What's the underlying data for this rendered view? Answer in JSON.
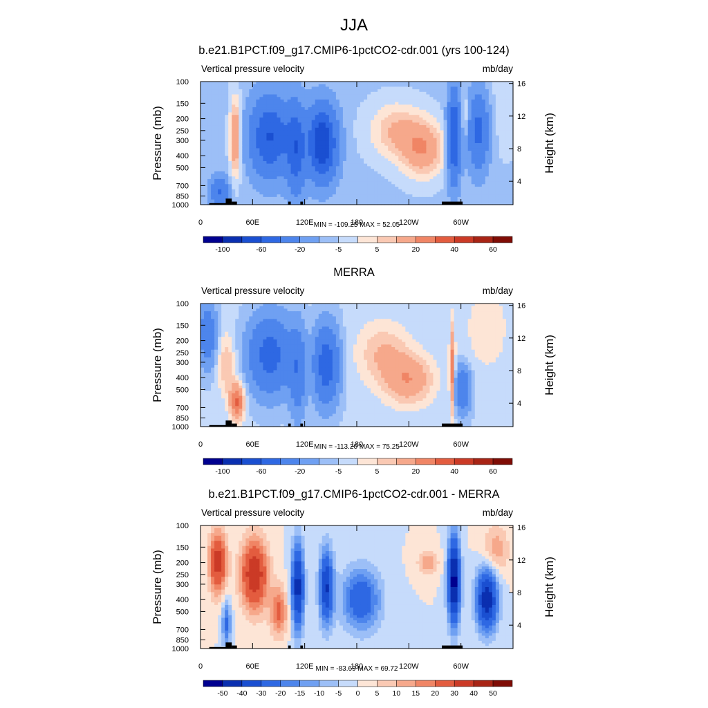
{
  "figure": {
    "title": "JJA"
  },
  "y_axis": {
    "left_label": "Pressure (mb)",
    "right_label": "Height (km)",
    "pressure_ticks": [
      "100",
      "150",
      "200",
      "250",
      "300",
      "400",
      "500",
      "700",
      "850",
      "1000"
    ],
    "height_ticks": [
      "16",
      "12",
      "8",
      "4"
    ]
  },
  "x_axis": {
    "ticks": [
      "0",
      "60E",
      "120E",
      "180",
      "120W",
      "60W"
    ]
  },
  "panels": [
    {
      "title": "b.e21.B1PCT.f09_g17.CMIP6-1pctCO2-cdr.001 (yrs 100-124)",
      "left_string": "Vertical pressure velocity",
      "right_string": "mb/day",
      "stats": "MIN = -109.25  MAX =  52.05",
      "colorbar_labels": [
        "-100",
        "-60",
        "-20",
        "-5",
        "5",
        "20",
        "40",
        "60"
      ]
    },
    {
      "title": "MERRA",
      "left_string": "Vertical pressure velocity",
      "right_string": "mb/day",
      "stats": "MIN = -113.20  MAX =  75.25",
      "colorbar_labels": [
        "-100",
        "-60",
        "-20",
        "-5",
        "5",
        "20",
        "40",
        "60"
      ]
    },
    {
      "title": "b.e21.B1PCT.f09_g17.CMIP6-1pctCO2-cdr.001 - MERRA",
      "left_string": "Vertical pressure velocity",
      "right_string": "mb/day",
      "stats": "MIN = -83.69  MAX =  69.72",
      "colorbar_labels": [
        "-50",
        "-40",
        "-30",
        "-20",
        "-15",
        "-10",
        "-5",
        "0",
        "5",
        "10",
        "15",
        "20",
        "30",
        "40",
        "50"
      ]
    }
  ],
  "colors": {
    "palette": [
      "#00008f",
      "#0a2fb0",
      "#1a4fd1",
      "#2e68e3",
      "#4d85ec",
      "#6fa0f2",
      "#9cbff7",
      "#c6dbfb",
      "#fde5d6",
      "#fac9b3",
      "#f6a88b",
      "#f08565",
      "#e35c3f",
      "#cb3a26",
      "#a82415",
      "#7f0c05"
    ],
    "topography": "#000000"
  },
  "chart_data": [
    {
      "type": "heatmap",
      "title": "b.e21.B1PCT.f09_g17.CMIP6-1pctCO2-cdr.001 (yrs 100-124)",
      "xlabel": "",
      "ylabel": "Pressure (mb)",
      "y2label": "Height (km)",
      "x_ticks": [
        "0",
        "60E",
        "120E",
        "180",
        "120W",
        "60W"
      ],
      "y_ticks": [
        100,
        150,
        200,
        250,
        300,
        400,
        500,
        700,
        850,
        1000
      ],
      "y_scale": "log",
      "y_inverted": true,
      "variable": "Vertical pressure velocity",
      "units": "mb/day",
      "min": -109.25,
      "max": 52.05,
      "colorbar_levels": [
        -100,
        -60,
        -20,
        -5,
        5,
        20,
        40,
        60
      ]
    },
    {
      "type": "heatmap",
      "title": "MERRA",
      "xlabel": "",
      "ylabel": "Pressure (mb)",
      "y2label": "Height (km)",
      "x_ticks": [
        "0",
        "60E",
        "120E",
        "180",
        "120W",
        "60W"
      ],
      "y_ticks": [
        100,
        150,
        200,
        250,
        300,
        400,
        500,
        700,
        850,
        1000
      ],
      "y_scale": "log",
      "y_inverted": true,
      "variable": "Vertical pressure velocity",
      "units": "mb/day",
      "min": -113.2,
      "max": 75.25,
      "colorbar_levels": [
        -100,
        -60,
        -20,
        -5,
        5,
        20,
        40,
        60
      ]
    },
    {
      "type": "heatmap",
      "title": "b.e21.B1PCT.f09_g17.CMIP6-1pctCO2-cdr.001 - MERRA",
      "xlabel": "",
      "ylabel": "Pressure (mb)",
      "y2label": "Height (km)",
      "x_ticks": [
        "0",
        "60E",
        "120E",
        "180",
        "120W",
        "60W"
      ],
      "y_ticks": [
        100,
        150,
        200,
        250,
        300,
        400,
        500,
        700,
        850,
        1000
      ],
      "y_scale": "log",
      "y_inverted": true,
      "variable": "Vertical pressure velocity",
      "units": "mb/day",
      "min": -83.69,
      "max": 69.72,
      "colorbar_levels": [
        -50,
        -40,
        -30,
        -20,
        -15,
        -10,
        -5,
        0,
        5,
        10,
        15,
        20,
        30,
        40,
        50
      ]
    }
  ]
}
